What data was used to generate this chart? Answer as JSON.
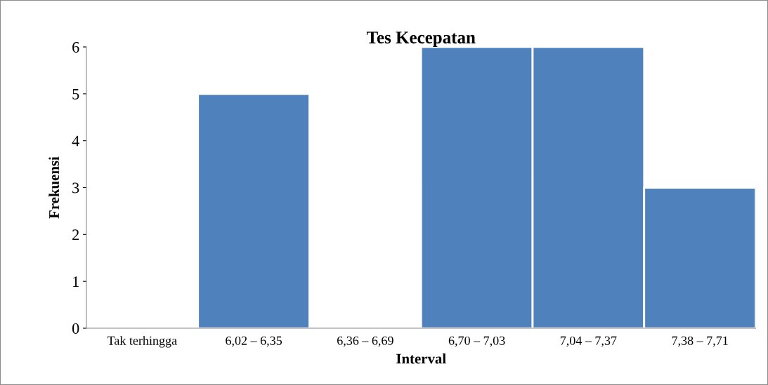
{
  "chart_data": {
    "type": "bar",
    "title": "Tes Kecepatan",
    "xlabel": "Interval",
    "ylabel": "Frekuensi",
    "categories": [
      "Tak terhingga",
      "6,02 – 6,35",
      "6,36 – 6,69",
      "6,70 – 7,03",
      "7,04 – 7,37",
      "7,38 – 7,71"
    ],
    "values": [
      0,
      5,
      0,
      6,
      6,
      3
    ],
    "color": "#4f81bd",
    "ylim": [
      0,
      6
    ],
    "yticks": [
      0,
      1,
      2,
      3,
      4,
      5,
      6
    ],
    "grid": false,
    "legend": false
  }
}
